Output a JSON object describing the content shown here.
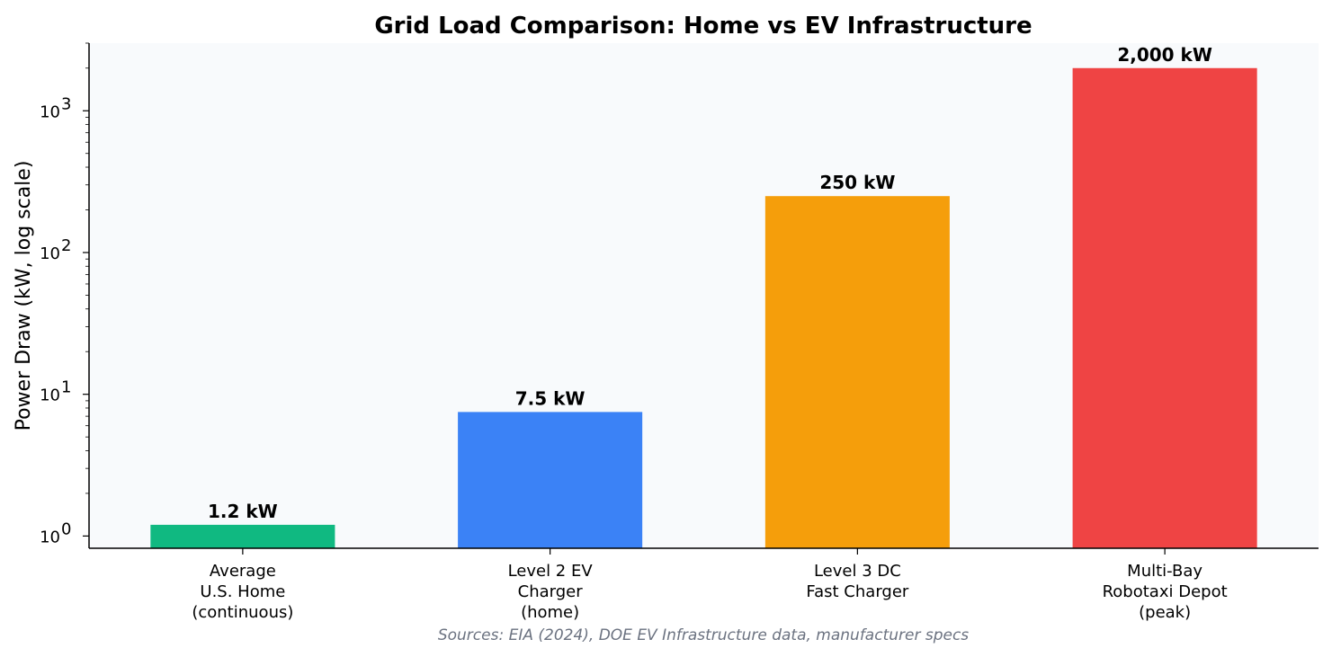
{
  "chart_data": {
    "type": "bar",
    "title": "Grid Load Comparison: Home vs EV Infrastructure",
    "ylabel": "Power Draw (kW, log scale)",
    "xlabel": "",
    "yscale": "log",
    "ylim": [
      0.82,
      3000
    ],
    "yticks": [
      {
        "value": 1,
        "base": "10",
        "exp": "0"
      },
      {
        "value": 10,
        "base": "10",
        "exp": "1"
      },
      {
        "value": 100,
        "base": "10",
        "exp": "2"
      },
      {
        "value": 1000,
        "base": "10",
        "exp": "3"
      }
    ],
    "grid": false,
    "categories": [
      [
        "Average",
        "U.S. Home",
        "(continuous)"
      ],
      [
        "Level 2 EV",
        "Charger",
        "(home)"
      ],
      [
        "Level 3 DC",
        "Fast Charger"
      ],
      [
        "Multi-Bay",
        "Robotaxi Depot",
        "(peak)"
      ]
    ],
    "values": [
      1.2,
      7.5,
      250,
      2000
    ],
    "value_labels": [
      "1.2 kW",
      "7.5 kW",
      "250 kW",
      "2,000 kW"
    ],
    "colors": [
      "#10b981",
      "#3b82f6",
      "#f59e0b",
      "#ef4444"
    ],
    "plot_background": "#f8fafc",
    "source_note": "Sources: EIA (2024), DOE EV Infrastructure data, manufacturer specs"
  }
}
